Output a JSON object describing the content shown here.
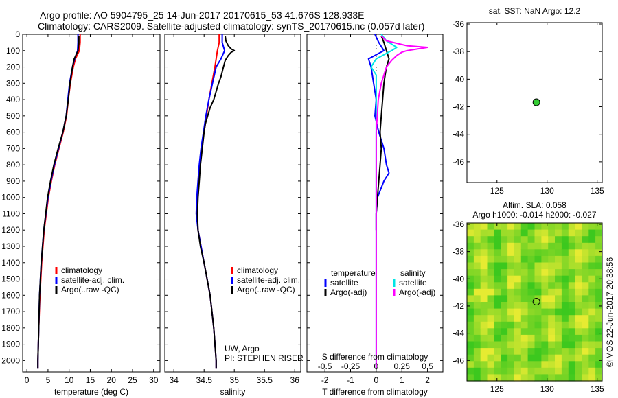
{
  "header": {
    "title_line1": "Argo profile: AO 5904795_25 14-Jun-2017 20170615_53 41.676S 128.933E",
    "title_line2": "Climatology: CARS2009. Satellite-adjusted climatology: synTS_20170615.nc (0.057d later)"
  },
  "colors": {
    "climatology": "#ff0000",
    "satellite": "#0000ff",
    "argo": "#000000",
    "satellite_salinity": "#00e5e5",
    "argo_salinity_adj": "#ff00ff",
    "marker": "#33cc33",
    "sla_map_base": "#66dd33"
  },
  "chart_data": [
    {
      "id": "temperature",
      "type": "line",
      "xlabel": "temperature (deg C)",
      "ylim": [
        2070,
        0
      ],
      "xlim": [
        -1,
        31.5
      ],
      "y_ticks": [
        0,
        100,
        200,
        300,
        400,
        500,
        600,
        700,
        800,
        900,
        1000,
        1100,
        1200,
        1300,
        1400,
        1500,
        1600,
        1700,
        1800,
        1900,
        2000
      ],
      "x_ticks": [
        0,
        5,
        10,
        15,
        20,
        25,
        30
      ],
      "legend": [
        "climatology",
        "satellite-adj. clim.",
        "Argo(..raw -QC)"
      ],
      "series": [
        {
          "name": "climatology",
          "color": "#ff0000",
          "depth": [
            0,
            50,
            100,
            150,
            200,
            300,
            400,
            500,
            600,
            700,
            800,
            900,
            1000,
            1200,
            1400,
            1600,
            1800,
            2000,
            2050
          ],
          "values": [
            12.6,
            12.6,
            12.4,
            11.5,
            11.0,
            10.3,
            9.8,
            9.4,
            8.6,
            7.6,
            6.6,
            5.8,
            5.1,
            4.1,
            3.5,
            3.1,
            2.8,
            2.6,
            2.6
          ]
        },
        {
          "name": "satellite-adj. clim.",
          "color": "#0000ff",
          "depth": [
            0,
            50,
            100,
            150,
            200,
            300,
            400,
            500,
            600,
            700,
            800,
            900,
            1000,
            1200,
            1400,
            1600,
            1800,
            2000,
            2050
          ],
          "values": [
            12.1,
            12.1,
            12.0,
            11.3,
            10.8,
            10.1,
            9.7,
            9.3,
            8.5,
            7.5,
            6.5,
            5.7,
            5.0,
            4.0,
            3.4,
            3.0,
            2.8,
            2.6,
            2.6
          ]
        },
        {
          "name": "Argo(..raw -QC)",
          "color": "#000000",
          "depth": [
            10,
            50,
            100,
            150,
            200,
            300,
            400,
            500,
            600,
            700,
            800,
            900,
            1000,
            1200,
            1400,
            1600,
            1800,
            2000,
            2050
          ],
          "values": [
            12.3,
            12.3,
            12.1,
            11.2,
            10.8,
            10.2,
            9.8,
            9.3,
            8.5,
            7.4,
            6.4,
            5.6,
            4.9,
            4.0,
            3.4,
            3.0,
            2.8,
            2.6,
            2.6
          ]
        }
      ]
    },
    {
      "id": "salinity",
      "type": "line",
      "xlabel": "salinity",
      "ylim": [
        2070,
        0
      ],
      "xlim": [
        33.85,
        36.1
      ],
      "x_ticks": [
        34,
        34.5,
        35,
        35.5,
        36
      ],
      "x_tick_labels": [
        "34",
        "34.5",
        "35",
        "35.5",
        "36"
      ],
      "legend": [
        "climatology",
        "satellite-adj. clim.",
        "Argo(..raw -QC)"
      ],
      "annotation": [
        "UW, Argo",
        "PI: STEPHEN RISER"
      ],
      "series": [
        {
          "name": "climatology",
          "color": "#ff0000",
          "depth": [
            0,
            50,
            100,
            150,
            200,
            300,
            400,
            500,
            600,
            700,
            800,
            900,
            1000,
            1100,
            1200,
            1400,
            1600,
            1800,
            2000,
            2050
          ],
          "values": [
            34.75,
            34.75,
            34.72,
            34.7,
            34.68,
            34.63,
            34.58,
            34.54,
            34.5,
            34.46,
            34.43,
            34.41,
            34.39,
            34.38,
            34.4,
            34.5,
            34.6,
            34.66,
            34.7,
            34.7
          ]
        },
        {
          "name": "satellite-adj. clim.",
          "color": "#0000ff",
          "depth": [
            0,
            50,
            100,
            150,
            200,
            300,
            400,
            500,
            600,
            700,
            800,
            900,
            1000,
            1100,
            1200,
            1400,
            1600,
            1800,
            2000,
            2050
          ],
          "values": [
            34.8,
            34.8,
            34.84,
            34.78,
            34.7,
            34.64,
            34.58,
            34.53,
            34.49,
            34.45,
            34.42,
            34.4,
            34.38,
            34.37,
            34.4,
            34.5,
            34.6,
            34.66,
            34.7,
            34.7
          ]
        },
        {
          "name": "Argo(..raw -QC)",
          "color": "#000000",
          "depth": [
            10,
            40,
            70,
            90,
            100,
            110,
            130,
            160,
            200,
            230,
            260,
            300,
            350,
            400,
            450,
            500,
            550,
            600,
            700,
            800,
            900,
            1000,
            1100,
            1200,
            1300,
            1400,
            1600,
            1800,
            2000,
            2050
          ],
          "values": [
            34.85,
            34.86,
            34.9,
            34.95,
            35.0,
            34.95,
            34.9,
            34.85,
            34.82,
            34.8,
            34.78,
            34.74,
            34.7,
            34.66,
            34.6,
            34.56,
            34.52,
            34.5,
            34.47,
            34.44,
            34.42,
            34.4,
            34.39,
            34.4,
            34.44,
            34.5,
            34.6,
            34.66,
            34.7,
            34.7
          ]
        }
      ]
    },
    {
      "id": "difference",
      "type": "line",
      "xlabel": "T difference from climatology",
      "top_xlabel": "S difference from climatology",
      "ylim": [
        2070,
        0
      ],
      "xlim": [
        -2.7,
        2.6
      ],
      "x_ticks": [
        -2,
        -1,
        0,
        1,
        2
      ],
      "x_tick_labels": [
        "-2",
        "-1",
        "0",
        "1",
        "2"
      ],
      "top_ticks": [
        -0.5,
        -0.25,
        0,
        0.25,
        0.5
      ],
      "top_tick_labels": [
        "-0.5",
        "-0.25",
        "0",
        "0.25",
        "0.5"
      ],
      "legend": {
        "temperature_title": "temperature",
        "salinity_title": "salinity",
        "entries": [
          "satellite",
          "Argo(-adj)",
          "satellite",
          "Argo(-adj)"
        ]
      },
      "series": [
        {
          "name": "satellite",
          "color": "#0000ff",
          "kind": "T",
          "depth": [
            0,
            50,
            100,
            150,
            200,
            300,
            400,
            500,
            600,
            700,
            800,
            850,
            900,
            1000,
            1100,
            1200
          ],
          "values": [
            -0.05,
            0.1,
            0.3,
            -0.3,
            -0.2,
            -0.1,
            0.0,
            -0.05,
            0.1,
            0.3,
            0.4,
            0.5,
            0.3,
            0.05,
            0.0,
            0.0
          ]
        },
        {
          "name": "Argo(-adj)",
          "color": "#000000",
          "kind": "T",
          "depth": [
            10,
            50,
            100,
            150,
            200,
            250,
            300,
            400,
            500,
            600,
            700,
            800,
            900,
            1000,
            1100,
            1200
          ],
          "values": [
            0.2,
            0.3,
            0.4,
            0.5,
            0.4,
            0.35,
            0.3,
            0.25,
            0.2,
            0.15,
            0.2,
            0.15,
            0.1,
            0.05,
            0.0,
            0.0
          ]
        },
        {
          "name": "satellite",
          "color": "#00e5e5",
          "kind": "S",
          "depth": [
            0,
            40,
            80,
            100,
            150,
            200,
            250,
            300,
            400,
            600,
            800,
            1000,
            1200,
            1600,
            2050
          ],
          "values": [
            0.05,
            0.1,
            0.2,
            0.15,
            0.0,
            -0.05,
            0.0,
            0.0,
            0.0,
            0.0,
            0.0,
            0.0,
            0.0,
            0.0,
            0.0
          ]
        },
        {
          "name": "Argo(-adj)",
          "color": "#ff00ff",
          "kind": "S",
          "depth": [
            10,
            40,
            70,
            80,
            90,
            100,
            110,
            130,
            160,
            200,
            300,
            400,
            600,
            800,
            1000,
            1200,
            1600,
            2050
          ],
          "values": [
            0.05,
            0.1,
            0.3,
            0.5,
            0.4,
            0.3,
            0.25,
            0.2,
            0.15,
            0.1,
            0.05,
            0.02,
            0.0,
            0.0,
            0.0,
            0.0,
            0.0,
            0.0
          ]
        }
      ]
    },
    {
      "id": "sst_map",
      "type": "scatter",
      "title": "sat. SST: NaN Argo: 12.2",
      "xlim": [
        122,
        135.5
      ],
      "ylim": [
        -47.5,
        -35.9
      ],
      "x_ticks": [
        125,
        130,
        135
      ],
      "y_ticks": [
        -36,
        -38,
        -40,
        -42,
        -44,
        -46
      ],
      "points": [
        {
          "x": 128.933,
          "y": -41.676,
          "color": "#33cc33"
        }
      ]
    },
    {
      "id": "sla_map",
      "type": "heatmap",
      "title_line1": "Altim. SLA: 0.058",
      "title_line2": "Argo h1000: -0.014 h2000: -0.027",
      "xlim": [
        122,
        135.5
      ],
      "ylim": [
        -47.5,
        -35.9
      ],
      "x_ticks": [
        125,
        130,
        135
      ],
      "y_ticks": [
        -36,
        -38,
        -40,
        -42,
        -44,
        -46
      ],
      "points": [
        {
          "x": 128.933,
          "y": -41.676
        }
      ],
      "side_label": "©IMOS 22-Jun-2017 20:38:56"
    }
  ]
}
